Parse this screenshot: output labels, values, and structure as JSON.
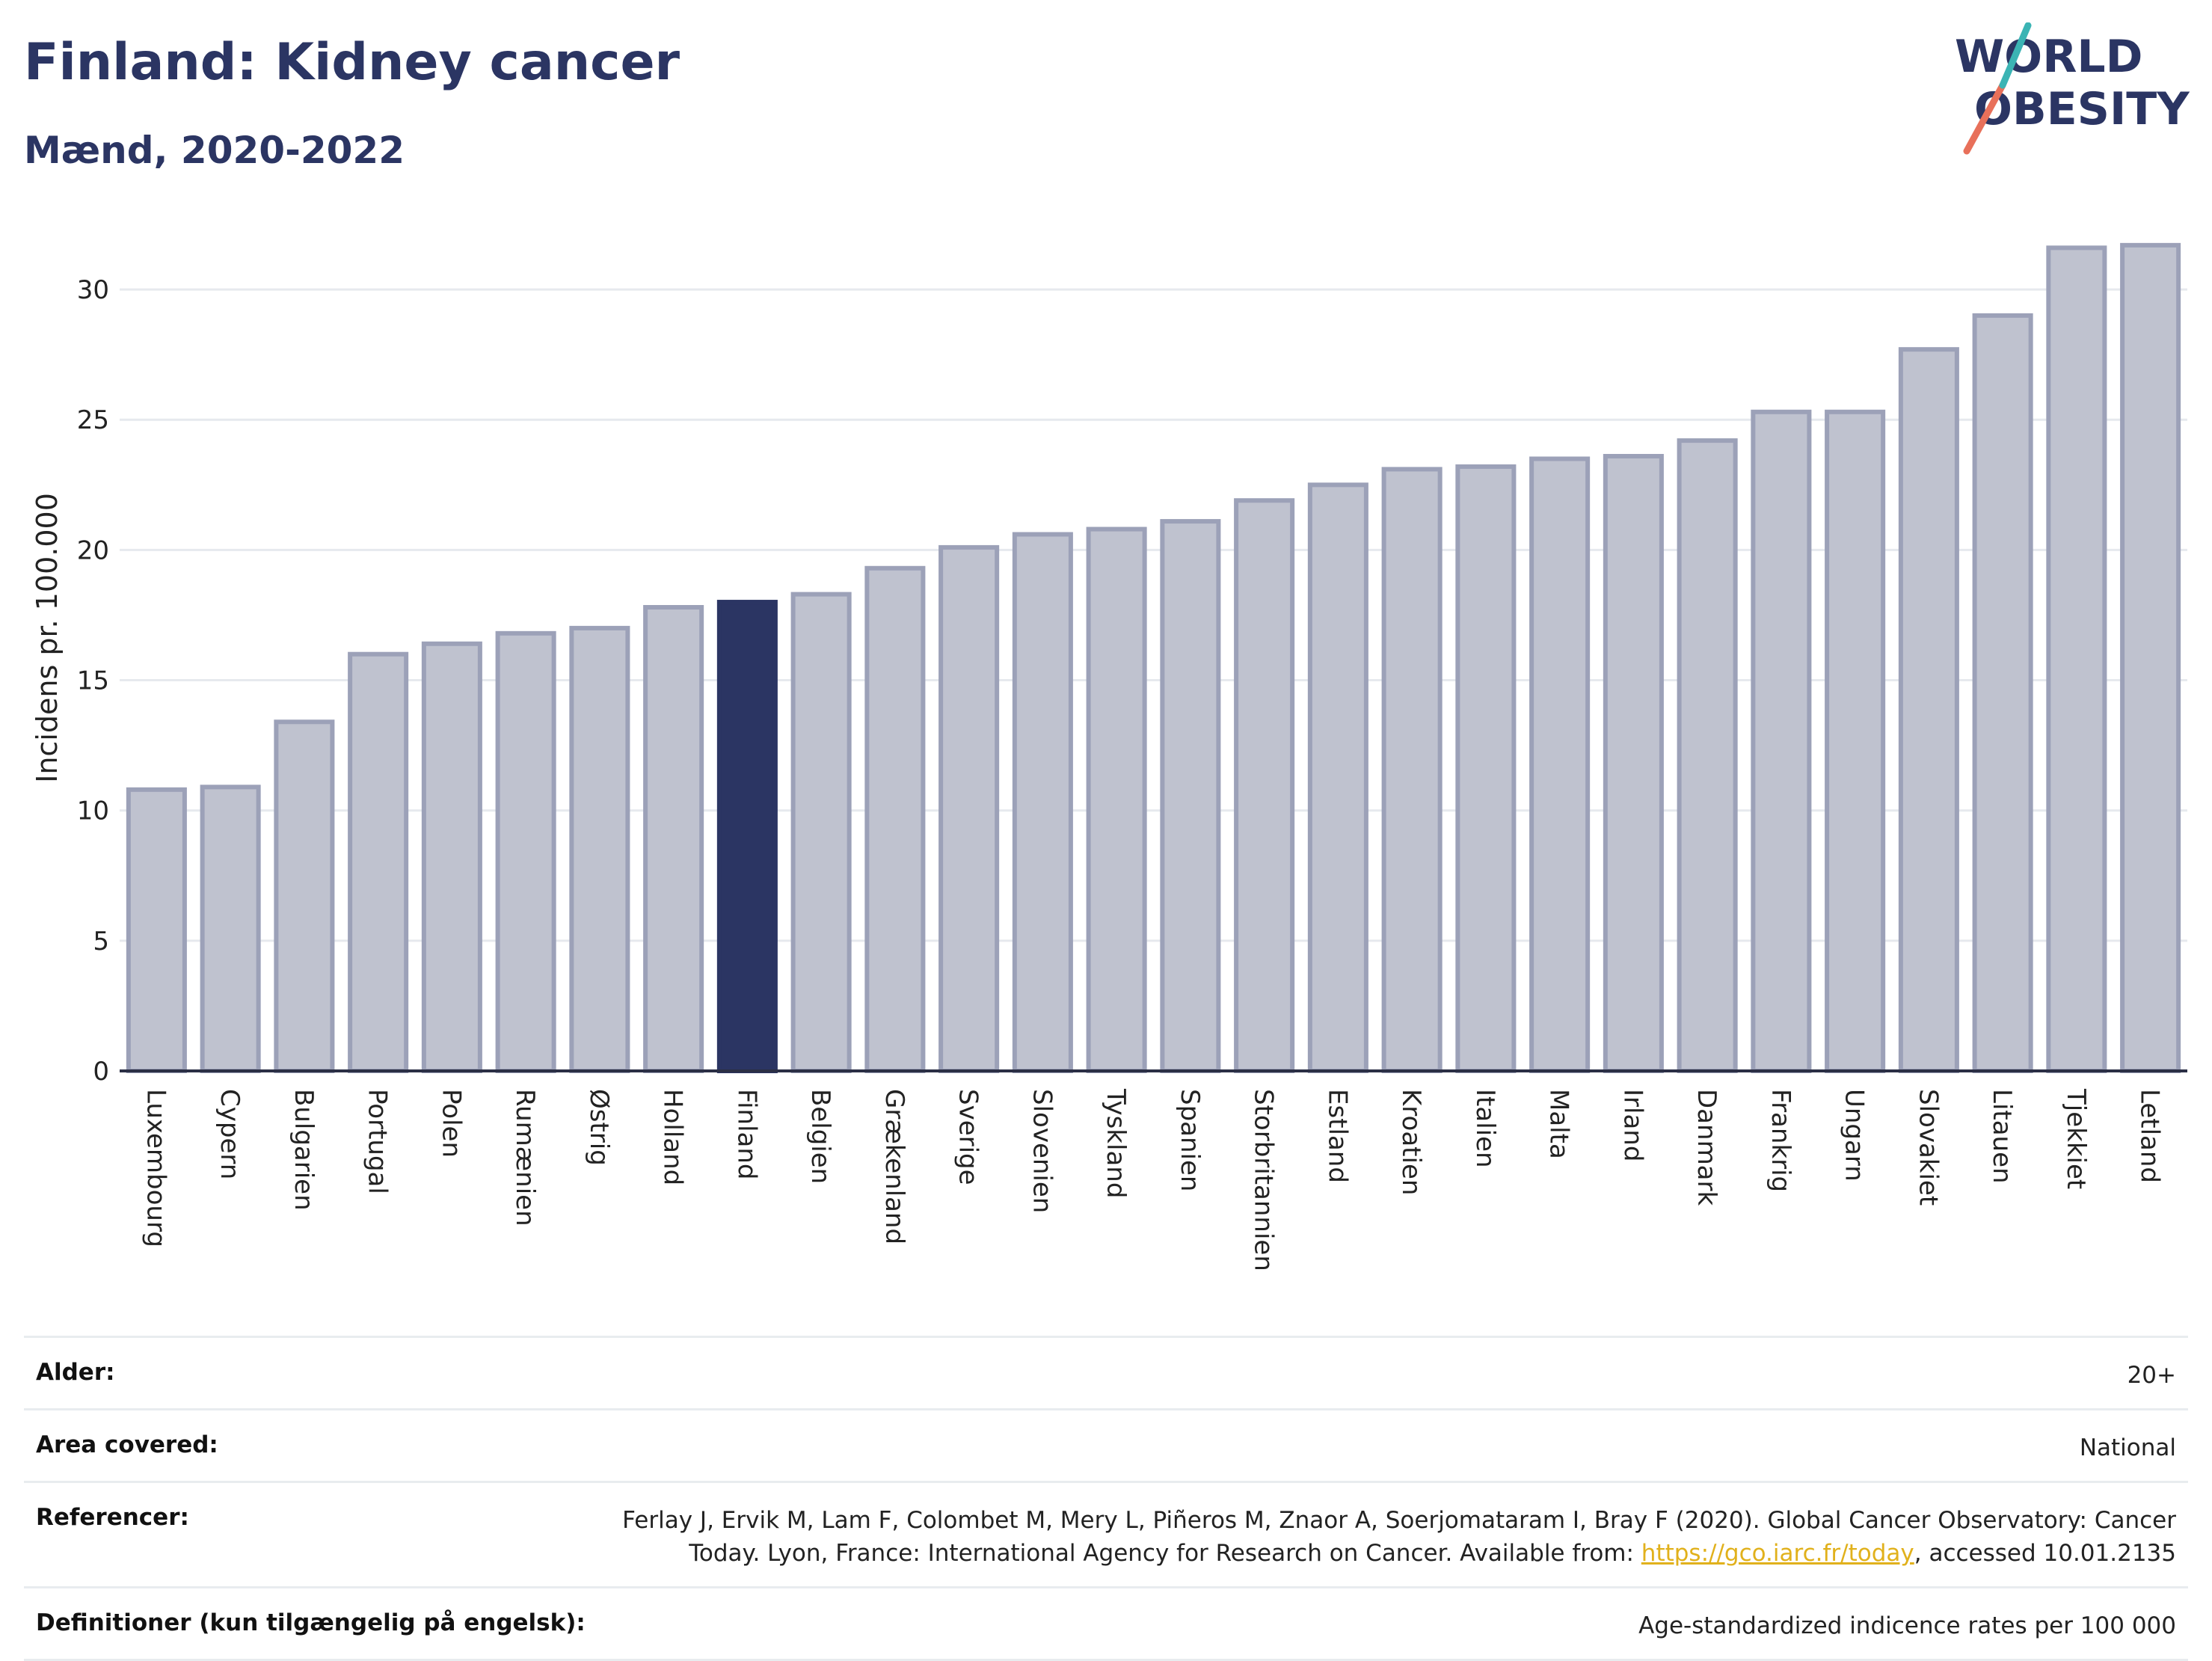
{
  "header": {
    "title": "Finland: Kidney cancer",
    "subtitle": "Mænd, 2020-2022"
  },
  "logo": {
    "line1": "WORLD",
    "line2": "OBESITY",
    "colors": [
      "#2b3563",
      "#e8705a",
      "#3bb4b4"
    ]
  },
  "chart_data": {
    "type": "bar",
    "ylabel": "Incidens pr. 100.000",
    "ylim": [
      0,
      32.5
    ],
    "yticks": [
      0,
      5,
      10,
      15,
      20,
      25,
      30
    ],
    "grid": true,
    "highlight": "Finland",
    "colors": {
      "bar": "#bfc2cf",
      "bar_border": "#9ca1b8",
      "highlight": "#2b3563"
    },
    "categories": [
      "Luxembourg",
      "Cypern",
      "Bulgarien",
      "Portugal",
      "Polen",
      "Rumænien",
      "Østrig",
      "Holland",
      "Finland",
      "Belgien",
      "Grækenland",
      "Sverige",
      "Slovenien",
      "Tyskland",
      "Spanien",
      "Storbritannien",
      "Estland",
      "Kroatien",
      "Italien",
      "Malta",
      "Irland",
      "Danmark",
      "Frankrig",
      "Ungarn",
      "Slovakiet",
      "Litauen",
      "Tjekkiet",
      "Letland"
    ],
    "values": [
      10.8,
      10.9,
      13.4,
      16.0,
      16.4,
      16.8,
      17.0,
      17.8,
      18.0,
      18.3,
      19.3,
      20.1,
      20.6,
      20.8,
      21.1,
      21.9,
      22.5,
      23.1,
      23.2,
      23.5,
      23.6,
      24.2,
      25.3,
      25.3,
      27.7,
      29.0,
      31.6,
      31.7
    ]
  },
  "info": {
    "rows": [
      {
        "key": "Alder:",
        "value": "20+"
      },
      {
        "key": "Area covered:",
        "value": "National"
      },
      {
        "key": "Referencer:",
        "value_line1": "Ferlay J, Ervik M, Lam F, Colombet M, Mery L, Piñeros M, Znaor A, Soerjomataram I, Bray F (2020). Global Cancer Observatory: Cancer",
        "value_line2_pre": "Today. Lyon, France: International Agency for Research on Cancer. Available from: ",
        "link": "https://gco.iarc.fr/today",
        "value_line2_post": ", accessed 10.01.2135"
      },
      {
        "key": "Definitioner (kun tilgængelig på engelsk):",
        "value": "Age-standardized indicence rates per 100 000"
      }
    ]
  }
}
